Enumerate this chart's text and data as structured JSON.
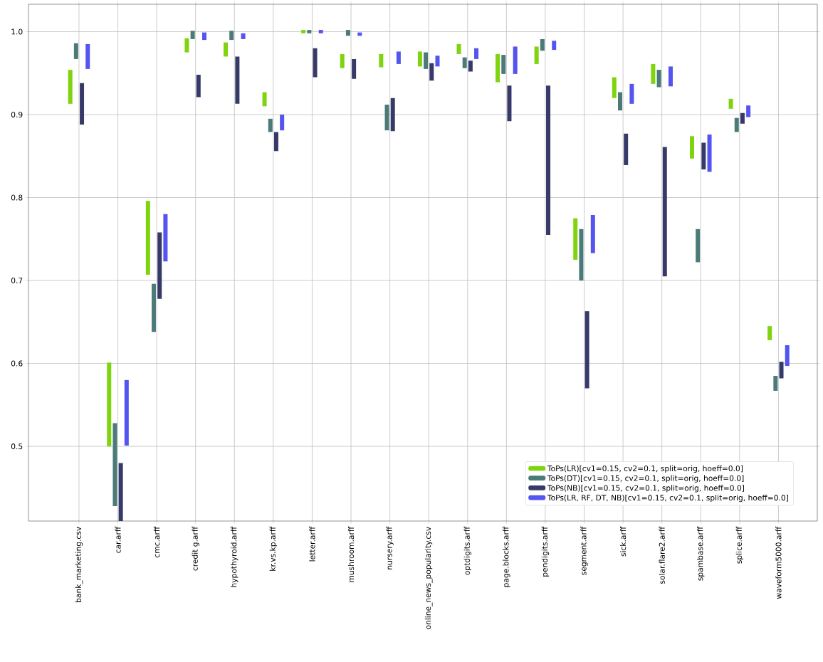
{
  "chart_data": {
    "type": "bar",
    "categories": [
      "bank_marketing.csv",
      "car.arff",
      "cmc.arff",
      "credit g.arff",
      "hypothyroid.arff",
      "kr.vs.kp.arff",
      "letter.arff",
      "mushroom.arff",
      "nursery.arff",
      "online_news_popularity.csv",
      "optdigits.arff",
      "page.blocks.arff",
      "pendigits.arff",
      "segment.arff",
      "sick.arff",
      "solar.flare2.arff",
      "spambase.arff",
      "splice.arff",
      "waveform5000.arff"
    ],
    "series": [
      {
        "name": "ToPs(LR)[cv1=0.15, cv2=0.1, split=orig, hoeff=0.0]",
        "color": "#7fd40f",
        "base": [
          0.913,
          0.5,
          0.707,
          0.975,
          0.97,
          0.91,
          0.998,
          0.956,
          0.957,
          0.958,
          0.973,
          0.939,
          0.961,
          0.725,
          0.92,
          0.937,
          0.847,
          0.907,
          0.628
        ],
        "values": [
          0.041,
          0.101,
          0.089,
          0.017,
          0.017,
          0.017,
          0.004,
          0.017,
          0.016,
          0.018,
          0.012,
          0.034,
          0.021,
          0.05,
          0.025,
          0.024,
          0.027,
          0.012,
          0.017
        ]
      },
      {
        "name": "ToPs(DT)[cv1=0.15, cv2=0.1, split=orig, hoeff=0.0]",
        "color": "#4a7b78",
        "base": [
          0.967,
          0.428,
          0.638,
          0.991,
          0.99,
          0.879,
          0.998,
          0.995,
          0.881,
          0.955,
          0.956,
          0.949,
          0.977,
          0.7,
          0.905,
          0.933,
          0.722,
          0.879,
          0.567
        ],
        "values": [
          0.019,
          0.1,
          0.058,
          0.01,
          0.011,
          0.016,
          0.004,
          0.007,
          0.031,
          0.02,
          0.013,
          0.023,
          0.014,
          0.062,
          0.022,
          0.021,
          0.04,
          0.017,
          0.018
        ]
      },
      {
        "name": "ToPs(NB)[cv1=0.15, cv2=0.1, split=orig, hoeff=0.0]",
        "color": "#373a69",
        "base": [
          0.888,
          0.41,
          0.678,
          0.921,
          0.913,
          0.856,
          0.945,
          0.943,
          0.88,
          0.941,
          0.952,
          0.892,
          0.755,
          0.57,
          0.839,
          0.705,
          0.834,
          0.889,
          0.582
        ],
        "values": [
          0.05,
          0.07,
          0.08,
          0.027,
          0.057,
          0.023,
          0.035,
          0.024,
          0.04,
          0.021,
          0.013,
          0.043,
          0.18,
          0.093,
          0.038,
          0.156,
          0.032,
          0.013,
          0.02
        ]
      },
      {
        "name": "ToPs(LR, RF, DT, NB)[cv1=0.15, cv2=0.1, split=orig, hoeff=0.0]",
        "color": "#5454f0",
        "base": [
          0.955,
          0.501,
          0.723,
          0.99,
          0.991,
          0.881,
          0.998,
          0.995,
          0.961,
          0.958,
          0.967,
          0.949,
          0.978,
          0.733,
          0.913,
          0.934,
          0.831,
          0.897,
          0.597
        ],
        "values": [
          0.03,
          0.079,
          0.057,
          0.009,
          0.007,
          0.019,
          0.004,
          0.004,
          0.015,
          0.013,
          0.013,
          0.033,
          0.011,
          0.046,
          0.024,
          0.024,
          0.045,
          0.014,
          0.025
        ]
      }
    ],
    "ylim": [
      0.41,
      1.033
    ],
    "yticks": [
      {
        "value": 0.5,
        "label": "0.5"
      },
      {
        "value": 0.6,
        "label": "0.6"
      },
      {
        "value": 0.7,
        "label": "0.7"
      },
      {
        "value": 0.8,
        "label": "0.8"
      },
      {
        "value": 0.9,
        "label": "0.9"
      },
      {
        "value": 1.0,
        "label": "1.0"
      }
    ],
    "grid": true,
    "legend": "bottom right"
  }
}
